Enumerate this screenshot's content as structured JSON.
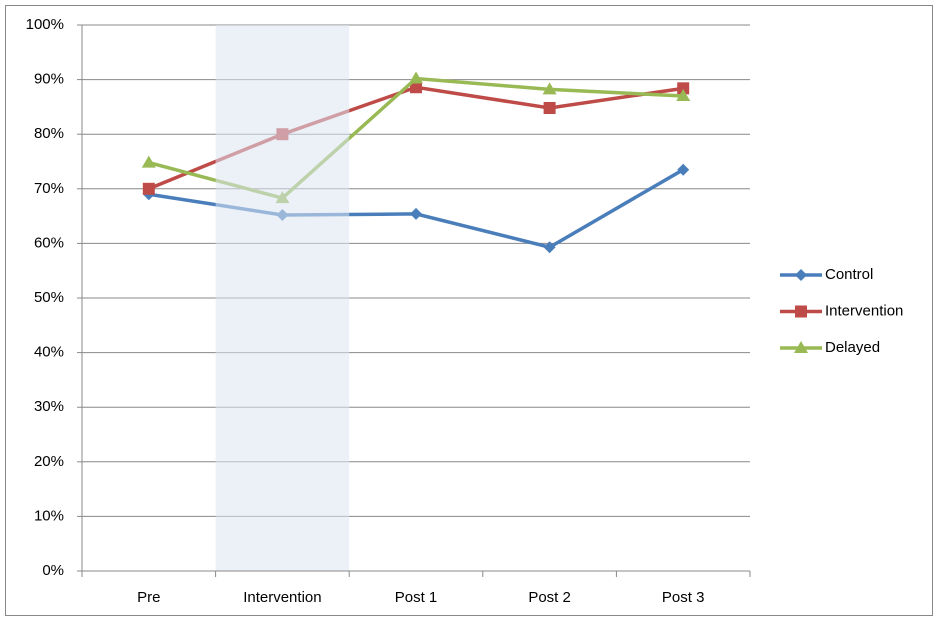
{
  "chart_data": {
    "type": "line",
    "categories": [
      "Pre",
      "Intervention",
      "Post 1",
      "Post 2",
      "Post 3"
    ],
    "series": [
      {
        "name": "Control",
        "color": "#4a7ebb",
        "marker": "diamond",
        "values": [
          69,
          65.2,
          65.4,
          59.3,
          73.5
        ]
      },
      {
        "name": "Intervention",
        "color": "#be4b48",
        "marker": "square",
        "values": [
          70,
          80,
          88.6,
          84.8,
          88.4
        ]
      },
      {
        "name": "Delayed",
        "color": "#98b954",
        "marker": "triangle",
        "values": [
          74.8,
          68.3,
          90.2,
          88.2,
          87
        ]
      }
    ],
    "ylim": [
      0,
      100
    ],
    "yticks": [
      {
        "value": 0,
        "label": "0%"
      },
      {
        "value": 10,
        "label": "10%"
      },
      {
        "value": 20,
        "label": "20%"
      },
      {
        "value": 30,
        "label": "30%"
      },
      {
        "value": 40,
        "label": "40%"
      },
      {
        "value": 50,
        "label": "50%"
      },
      {
        "value": 60,
        "label": "60%"
      },
      {
        "value": 70,
        "label": "70%"
      },
      {
        "value": 80,
        "label": "80%"
      },
      {
        "value": 90,
        "label": "90%"
      },
      {
        "value": 100,
        "label": "100%"
      }
    ],
    "grid": true,
    "legend": "right"
  }
}
